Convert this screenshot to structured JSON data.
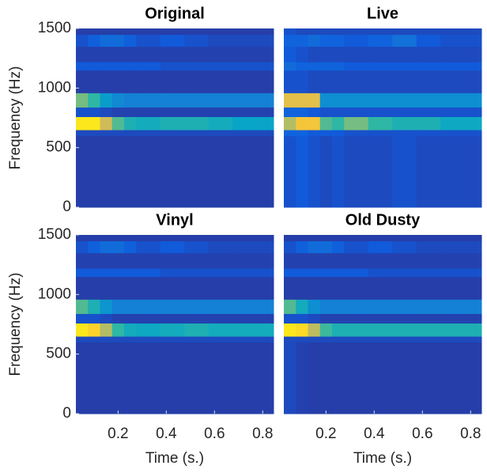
{
  "chart_data": [
    {
      "type": "heatmap",
      "title": "Original",
      "colormap": "parula",
      "ylabel": "Frequency (Hz)",
      "xbins": [
        0.025,
        0.075,
        0.125,
        0.175,
        0.225,
        0.275,
        0.375,
        0.475,
        0.575,
        0.675,
        0.845
      ],
      "ybins": [
        0,
        600,
        650,
        760,
        840,
        960,
        1150,
        1220,
        1350,
        1450,
        1500
      ],
      "z": [
        [
          0.05,
          0.05,
          0.05,
          0.05,
          0.05,
          0.05,
          0.05,
          0.05,
          0.05,
          0.05
        ],
        [
          0.08,
          0.08,
          0.08,
          0.08,
          0.08,
          0.08,
          0.08,
          0.08,
          0.08,
          0.08
        ],
        [
          0.95,
          0.95,
          0.75,
          0.55,
          0.45,
          0.42,
          0.45,
          0.45,
          0.42,
          0.38
        ],
        [
          0.1,
          0.1,
          0.08,
          0.06,
          0.06,
          0.06,
          0.06,
          0.06,
          0.06,
          0.06
        ],
        [
          0.6,
          0.5,
          0.35,
          0.28,
          0.25,
          0.25,
          0.25,
          0.25,
          0.25,
          0.25
        ],
        [
          0.05,
          0.05,
          0.05,
          0.05,
          0.05,
          0.05,
          0.05,
          0.05,
          0.05,
          0.05
        ],
        [
          0.12,
          0.12,
          0.12,
          0.12,
          0.12,
          0.12,
          0.1,
          0.1,
          0.1,
          0.1
        ],
        [
          0.06,
          0.06,
          0.06,
          0.06,
          0.06,
          0.06,
          0.06,
          0.06,
          0.06,
          0.06
        ],
        [
          0.1,
          0.14,
          0.18,
          0.18,
          0.14,
          0.1,
          0.12,
          0.1,
          0.08,
          0.08
        ],
        [
          0.05,
          0.05,
          0.05,
          0.05,
          0.05,
          0.05,
          0.05,
          0.05,
          0.05,
          0.05
        ]
      ],
      "xlim": [
        0.025,
        0.845
      ],
      "ylim": [
        0,
        1500
      ],
      "yticks": [
        0,
        500,
        1000,
        1500
      ]
    },
    {
      "type": "heatmap",
      "title": "Live",
      "colormap": "parula",
      "xbins": [
        0.025,
        0.075,
        0.125,
        0.175,
        0.225,
        0.275,
        0.375,
        0.475,
        0.575,
        0.675,
        0.845
      ],
      "ybins": [
        0,
        600,
        650,
        760,
        840,
        960,
        1150,
        1220,
        1350,
        1450,
        1500
      ],
      "z": [
        [
          0.1,
          0.12,
          0.1,
          0.08,
          0.1,
          0.08,
          0.08,
          0.1,
          0.08,
          0.08
        ],
        [
          0.15,
          0.15,
          0.12,
          0.12,
          0.12,
          0.1,
          0.1,
          0.1,
          0.1,
          0.1
        ],
        [
          0.7,
          0.85,
          0.85,
          0.55,
          0.5,
          0.6,
          0.5,
          0.45,
          0.45,
          0.4
        ],
        [
          0.15,
          0.15,
          0.12,
          0.1,
          0.1,
          0.1,
          0.1,
          0.1,
          0.1,
          0.1
        ],
        [
          0.8,
          0.8,
          0.8,
          0.3,
          0.3,
          0.3,
          0.3,
          0.3,
          0.3,
          0.3
        ],
        [
          0.1,
          0.1,
          0.08,
          0.08,
          0.08,
          0.08,
          0.08,
          0.08,
          0.08,
          0.08
        ],
        [
          0.18,
          0.15,
          0.15,
          0.15,
          0.15,
          0.12,
          0.12,
          0.12,
          0.12,
          0.12
        ],
        [
          0.12,
          0.1,
          0.08,
          0.08,
          0.08,
          0.08,
          0.08,
          0.08,
          0.08,
          0.08
        ],
        [
          0.15,
          0.15,
          0.18,
          0.15,
          0.15,
          0.12,
          0.15,
          0.2,
          0.12,
          0.1
        ],
        [
          0.1,
          0.08,
          0.08,
          0.08,
          0.08,
          0.08,
          0.08,
          0.08,
          0.08,
          0.08
        ]
      ],
      "xlim": [
        0.025,
        0.845
      ],
      "ylim": [
        0,
        1500
      ]
    },
    {
      "type": "heatmap",
      "title": "Vinyl",
      "colormap": "parula",
      "ylabel": "Frequency (Hz)",
      "xlabel": "Time (s.)",
      "xbins": [
        0.025,
        0.075,
        0.125,
        0.175,
        0.225,
        0.275,
        0.375,
        0.475,
        0.575,
        0.675,
        0.845
      ],
      "ybins": [
        0,
        600,
        650,
        760,
        840,
        960,
        1150,
        1220,
        1350,
        1450,
        1500
      ],
      "z": [
        [
          0.05,
          0.05,
          0.05,
          0.05,
          0.05,
          0.05,
          0.05,
          0.05,
          0.05,
          0.05
        ],
        [
          0.08,
          0.08,
          0.08,
          0.08,
          0.08,
          0.08,
          0.08,
          0.08,
          0.08,
          0.08
        ],
        [
          0.95,
          0.9,
          0.7,
          0.5,
          0.42,
          0.4,
          0.42,
          0.45,
          0.42,
          0.42
        ],
        [
          0.1,
          0.1,
          0.08,
          0.06,
          0.06,
          0.06,
          0.06,
          0.06,
          0.06,
          0.06
        ],
        [
          0.55,
          0.45,
          0.32,
          0.25,
          0.25,
          0.25,
          0.25,
          0.25,
          0.25,
          0.25
        ],
        [
          0.05,
          0.05,
          0.05,
          0.05,
          0.05,
          0.05,
          0.05,
          0.05,
          0.05,
          0.05
        ],
        [
          0.12,
          0.12,
          0.12,
          0.12,
          0.12,
          0.12,
          0.1,
          0.1,
          0.1,
          0.1
        ],
        [
          0.06,
          0.06,
          0.06,
          0.06,
          0.06,
          0.06,
          0.06,
          0.06,
          0.06,
          0.06
        ],
        [
          0.1,
          0.14,
          0.18,
          0.18,
          0.14,
          0.1,
          0.12,
          0.1,
          0.08,
          0.08
        ],
        [
          0.05,
          0.05,
          0.05,
          0.05,
          0.05,
          0.05,
          0.05,
          0.05,
          0.05,
          0.05
        ]
      ],
      "xlim": [
        0.025,
        0.845
      ],
      "ylim": [
        0,
        1500
      ],
      "yticks": [
        0,
        500,
        1000,
        1500
      ],
      "xticks": [
        0.2,
        0.4,
        0.6,
        0.8
      ]
    },
    {
      "type": "heatmap",
      "title": "Old Dusty",
      "colormap": "parula",
      "xlabel": "Time (s.)",
      "xbins": [
        0.025,
        0.075,
        0.125,
        0.175,
        0.225,
        0.275,
        0.375,
        0.475,
        0.575,
        0.675,
        0.845
      ],
      "ybins": [
        0,
        600,
        650,
        760,
        840,
        960,
        1150,
        1220,
        1350,
        1450,
        1500
      ],
      "z": [
        [
          0.08,
          0.06,
          0.05,
          0.05,
          0.05,
          0.05,
          0.05,
          0.05,
          0.05,
          0.05
        ],
        [
          0.08,
          0.08,
          0.08,
          0.08,
          0.08,
          0.08,
          0.08,
          0.08,
          0.08,
          0.08
        ],
        [
          0.95,
          0.92,
          0.72,
          0.52,
          0.45,
          0.45,
          0.45,
          0.45,
          0.45,
          0.45
        ],
        [
          0.1,
          0.1,
          0.08,
          0.06,
          0.06,
          0.06,
          0.06,
          0.06,
          0.06,
          0.06
        ],
        [
          0.55,
          0.42,
          0.3,
          0.25,
          0.25,
          0.25,
          0.25,
          0.25,
          0.25,
          0.25
        ],
        [
          0.05,
          0.05,
          0.05,
          0.05,
          0.05,
          0.05,
          0.05,
          0.05,
          0.05,
          0.05
        ],
        [
          0.12,
          0.12,
          0.12,
          0.12,
          0.12,
          0.12,
          0.1,
          0.1,
          0.1,
          0.1
        ],
        [
          0.06,
          0.06,
          0.06,
          0.06,
          0.06,
          0.06,
          0.06,
          0.06,
          0.06,
          0.06
        ],
        [
          0.1,
          0.14,
          0.18,
          0.18,
          0.14,
          0.1,
          0.12,
          0.1,
          0.08,
          0.08
        ],
        [
          0.05,
          0.05,
          0.05,
          0.05,
          0.05,
          0.05,
          0.05,
          0.05,
          0.05,
          0.05
        ]
      ],
      "xlim": [
        0.025,
        0.845
      ],
      "ylim": [
        0,
        1500
      ],
      "xticks": [
        0.2,
        0.4,
        0.6,
        0.8
      ]
    }
  ]
}
